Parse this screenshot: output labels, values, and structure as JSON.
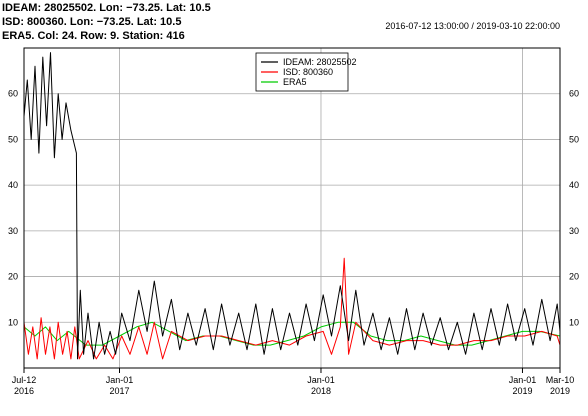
{
  "header": {
    "line1": "IDEAM: 28025502. Lon: −73.25. Lat: 10.5",
    "line2": "ISD: 800360. Lon: −73.25. Lat: 10.5",
    "line3": "ERA5.  Col: 24. Row: 9. Station: 416",
    "range": "2016-07-12 13:00:00 / 2019-03-10 22:00:00"
  },
  "chart_data": {
    "type": "line",
    "title": "",
    "xlabel": "",
    "ylabel": "",
    "xlim": [
      "2016-07-12",
      "2019-03-10"
    ],
    "ylim": [
      0,
      70
    ],
    "grid": true,
    "legend_position": "top-center",
    "yticks": [
      10,
      20,
      30,
      40,
      50,
      60
    ],
    "xticks": [
      {
        "date": "2016-07-12",
        "label": "Jul-12",
        "year": "2016"
      },
      {
        "date": "2017-01-01",
        "label": "Jan-01",
        "year": "2017"
      },
      {
        "date": "2018-01-01",
        "label": "Jan-01",
        "year": "2018"
      },
      {
        "date": "2019-01-01",
        "label": "Jan-01",
        "year": "2019"
      },
      {
        "date": "2019-03-10",
        "label": "Mar-10",
        "year": "2019"
      }
    ],
    "series": [
      {
        "name": "IDEAM: 28025502",
        "color": "#000000",
        "points": [
          [
            "2016-07-12",
            55
          ],
          [
            "2016-07-18",
            63
          ],
          [
            "2016-07-25",
            50
          ],
          [
            "2016-08-01",
            66
          ],
          [
            "2016-08-08",
            47
          ],
          [
            "2016-08-15",
            68
          ],
          [
            "2016-08-22",
            53
          ],
          [
            "2016-08-29",
            69
          ],
          [
            "2016-09-05",
            46
          ],
          [
            "2016-09-12",
            60
          ],
          [
            "2016-09-19",
            50
          ],
          [
            "2016-09-26",
            58
          ],
          [
            "2016-10-05",
            52
          ],
          [
            "2016-10-15",
            47
          ],
          [
            "2016-10-17",
            2
          ],
          [
            "2016-10-22",
            17
          ],
          [
            "2016-10-28",
            3
          ],
          [
            "2016-11-05",
            12
          ],
          [
            "2016-11-15",
            2
          ],
          [
            "2016-11-25",
            10
          ],
          [
            "2016-12-05",
            3
          ],
          [
            "2016-12-15",
            8
          ],
          [
            "2016-12-25",
            3
          ],
          [
            "2017-01-05",
            12
          ],
          [
            "2017-01-20",
            6
          ],
          [
            "2017-02-05",
            17
          ],
          [
            "2017-02-20",
            8
          ],
          [
            "2017-03-05",
            19
          ],
          [
            "2017-03-20",
            7
          ],
          [
            "2017-04-05",
            15
          ],
          [
            "2017-04-20",
            4
          ],
          [
            "2017-05-05",
            12
          ],
          [
            "2017-05-20",
            5
          ],
          [
            "2017-06-05",
            13
          ],
          [
            "2017-06-20",
            4
          ],
          [
            "2017-07-05",
            14
          ],
          [
            "2017-07-20",
            5
          ],
          [
            "2017-08-05",
            12
          ],
          [
            "2017-08-20",
            4
          ],
          [
            "2017-09-05",
            14
          ],
          [
            "2017-09-20",
            3
          ],
          [
            "2017-10-05",
            13
          ],
          [
            "2017-10-20",
            4
          ],
          [
            "2017-11-05",
            12
          ],
          [
            "2017-11-20",
            5
          ],
          [
            "2017-12-05",
            14
          ],
          [
            "2017-12-20",
            6
          ],
          [
            "2018-01-05",
            16
          ],
          [
            "2018-01-20",
            7
          ],
          [
            "2018-02-05",
            18
          ],
          [
            "2018-02-20",
            6
          ],
          [
            "2018-03-05",
            17
          ],
          [
            "2018-03-20",
            5
          ],
          [
            "2018-04-05",
            12
          ],
          [
            "2018-04-20",
            4
          ],
          [
            "2018-05-05",
            11
          ],
          [
            "2018-05-20",
            3
          ],
          [
            "2018-06-05",
            13
          ],
          [
            "2018-06-20",
            4
          ],
          [
            "2018-07-05",
            12
          ],
          [
            "2018-07-20",
            5
          ],
          [
            "2018-08-05",
            11
          ],
          [
            "2018-08-20",
            4
          ],
          [
            "2018-09-05",
            10
          ],
          [
            "2018-09-20",
            3
          ],
          [
            "2018-10-05",
            12
          ],
          [
            "2018-10-20",
            4
          ],
          [
            "2018-11-05",
            13
          ],
          [
            "2018-11-20",
            5
          ],
          [
            "2018-12-05",
            14
          ],
          [
            "2018-12-20",
            6
          ],
          [
            "2019-01-05",
            13
          ],
          [
            "2019-01-20",
            5
          ],
          [
            "2019-02-05",
            15
          ],
          [
            "2019-02-20",
            6
          ],
          [
            "2019-03-05",
            14
          ],
          [
            "2019-03-10",
            8
          ]
        ]
      },
      {
        "name": "ISD: 800360",
        "color": "#ff0000",
        "points": [
          [
            "2016-07-12",
            10
          ],
          [
            "2016-07-20",
            3
          ],
          [
            "2016-07-28",
            9
          ],
          [
            "2016-08-05",
            2
          ],
          [
            "2016-08-12",
            11
          ],
          [
            "2016-08-20",
            3
          ],
          [
            "2016-08-28",
            9
          ],
          [
            "2016-09-05",
            2
          ],
          [
            "2016-09-12",
            10
          ],
          [
            "2016-09-20",
            3
          ],
          [
            "2016-09-28",
            8
          ],
          [
            "2016-10-05",
            2
          ],
          [
            "2016-10-12",
            9
          ],
          [
            "2016-10-20",
            2
          ],
          [
            "2016-11-05",
            6
          ],
          [
            "2016-11-20",
            2
          ],
          [
            "2016-12-05",
            5
          ],
          [
            "2016-12-20",
            2
          ],
          [
            "2017-01-05",
            7
          ],
          [
            "2017-01-20",
            3
          ],
          [
            "2017-02-05",
            9
          ],
          [
            "2017-02-20",
            3
          ],
          [
            "2017-03-05",
            10
          ],
          [
            "2017-03-20",
            2
          ],
          [
            "2017-04-05",
            8
          ],
          [
            "2017-05-05",
            6
          ],
          [
            "2017-06-05",
            7
          ],
          [
            "2017-07-05",
            7
          ],
          [
            "2017-08-05",
            6
          ],
          [
            "2017-09-05",
            5
          ],
          [
            "2017-10-05",
            6
          ],
          [
            "2017-11-05",
            5
          ],
          [
            "2017-12-05",
            7
          ],
          [
            "2018-01-05",
            8
          ],
          [
            "2018-01-20",
            3
          ],
          [
            "2018-02-05",
            9
          ],
          [
            "2018-02-12",
            24
          ],
          [
            "2018-02-20",
            3
          ],
          [
            "2018-03-05",
            10
          ],
          [
            "2018-04-05",
            6
          ],
          [
            "2018-05-05",
            5
          ],
          [
            "2018-06-05",
            6
          ],
          [
            "2018-07-05",
            6
          ],
          [
            "2018-08-05",
            5
          ],
          [
            "2018-09-05",
            5
          ],
          [
            "2018-10-05",
            6
          ],
          [
            "2018-11-05",
            6
          ],
          [
            "2018-12-05",
            7
          ],
          [
            "2019-01-05",
            7
          ],
          [
            "2019-02-05",
            8
          ],
          [
            "2019-03-05",
            7
          ],
          [
            "2019-03-10",
            5
          ]
        ]
      },
      {
        "name": "ERA5",
        "color": "#00cc00",
        "points": [
          [
            "2016-07-12",
            9
          ],
          [
            "2016-08-01",
            7
          ],
          [
            "2016-08-20",
            9
          ],
          [
            "2016-09-10",
            6
          ],
          [
            "2016-10-01",
            8
          ],
          [
            "2016-11-01",
            5
          ],
          [
            "2016-12-01",
            5
          ],
          [
            "2017-01-01",
            7
          ],
          [
            "2017-02-01",
            9
          ],
          [
            "2017-03-01",
            10
          ],
          [
            "2017-04-01",
            8
          ],
          [
            "2017-05-01",
            6
          ],
          [
            "2017-06-01",
            7
          ],
          [
            "2017-07-01",
            7
          ],
          [
            "2017-08-01",
            6
          ],
          [
            "2017-09-01",
            5
          ],
          [
            "2017-10-01",
            5
          ],
          [
            "2017-11-01",
            6
          ],
          [
            "2017-12-01",
            7
          ],
          [
            "2018-01-01",
            9
          ],
          [
            "2018-02-01",
            10
          ],
          [
            "2018-03-01",
            10
          ],
          [
            "2018-04-01",
            7
          ],
          [
            "2018-05-01",
            6
          ],
          [
            "2018-06-01",
            6
          ],
          [
            "2018-07-01",
            7
          ],
          [
            "2018-08-01",
            6
          ],
          [
            "2018-09-01",
            5
          ],
          [
            "2018-10-01",
            5
          ],
          [
            "2018-11-01",
            6
          ],
          [
            "2018-12-01",
            7
          ],
          [
            "2019-01-01",
            8
          ],
          [
            "2019-02-01",
            8
          ],
          [
            "2019-03-10",
            7
          ]
        ]
      }
    ]
  }
}
